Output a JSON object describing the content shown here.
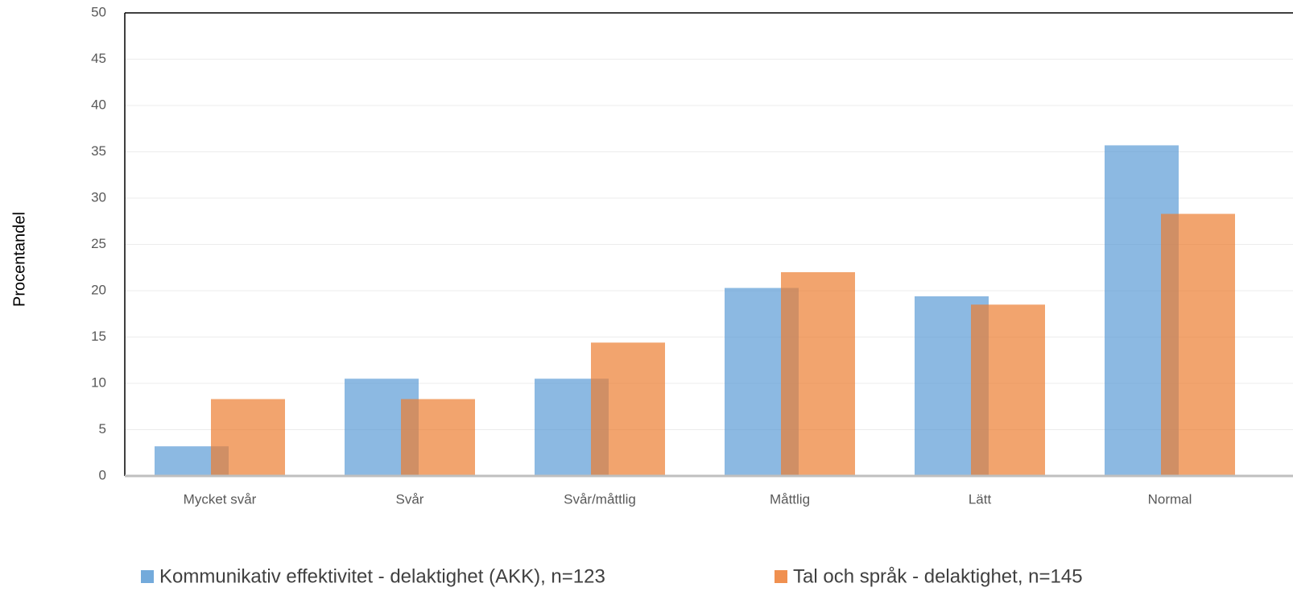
{
  "chart_data": {
    "type": "bar",
    "y_label": "Procentandel",
    "categories": [
      "Mycket svår",
      "Svår",
      "Svår/måttlig",
      "Måttlig",
      "Lätt",
      "Normal"
    ],
    "series": [
      {
        "name": "Kommunikativ effektivitet - delaktighet (AKK), n=123",
        "color": "#5b9bd5",
        "values": [
          3.2,
          10.5,
          10.5,
          20.3,
          19.4,
          35.7
        ]
      },
      {
        "name": "Tal och språk - delaktighet, n=145",
        "color": "#ed7d31",
        "values": [
          8.3,
          8.3,
          14.4,
          22.0,
          18.5,
          28.3
        ]
      }
    ],
    "ylim": [
      0,
      50
    ],
    "yticks": [
      0,
      5,
      10,
      15,
      20,
      25,
      30,
      35,
      40,
      45,
      50
    ],
    "grid": true,
    "legend": "bottom"
  }
}
